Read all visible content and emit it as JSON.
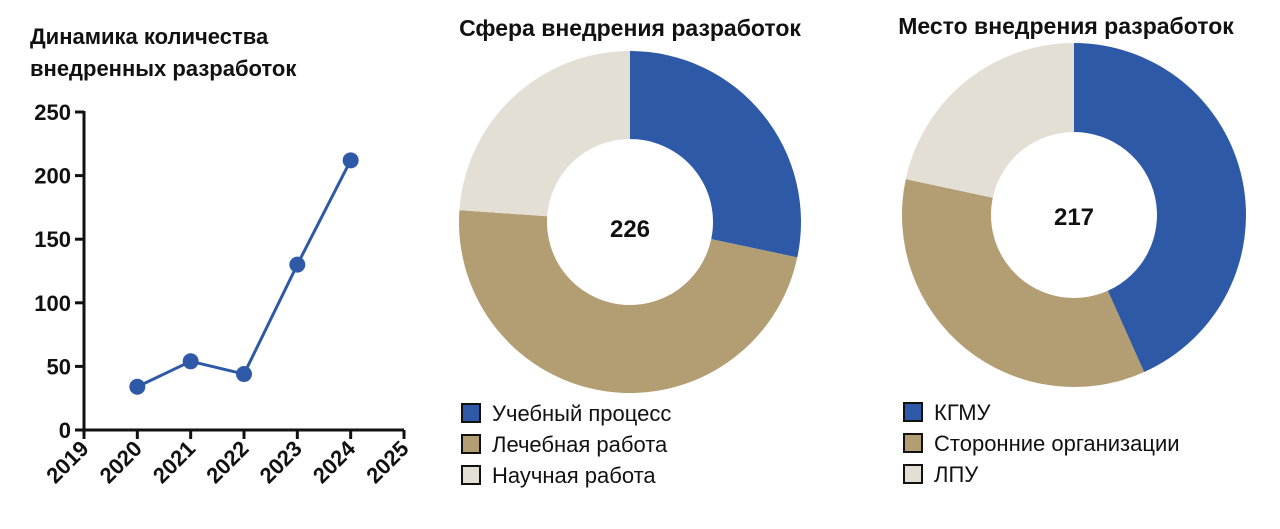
{
  "chart_data": [
    {
      "type": "line",
      "title_lines": [
        "Динамика количества",
        "внедренных разработок"
      ],
      "x": [
        2020,
        2021,
        2022,
        2023,
        2024
      ],
      "y": [
        34,
        54,
        44,
        130,
        212
      ],
      "x_ticks": [
        "2019",
        "2020",
        "2021",
        "2022",
        "2023",
        "2024",
        "2025"
      ],
      "y_ticks": [
        "0",
        "50",
        "100",
        "150",
        "200",
        "250"
      ],
      "xlim": [
        2019,
        2025
      ],
      "ylim": [
        0,
        250
      ],
      "grid": false,
      "color": "#2e59a7"
    },
    {
      "type": "pie",
      "donut": true,
      "title": "Сфера внедрения разработок",
      "total_label": "226",
      "labels": [
        "Учебный процесс",
        "Лечебная работа",
        "Научная работа"
      ],
      "values": [
        64,
        108,
        54
      ],
      "colors": [
        "#2e59a7",
        "#b39d72",
        "#e3dfd4"
      ],
      "legend_position": "bottom-left"
    },
    {
      "type": "pie",
      "donut": true,
      "title": "Место внедрения разработок",
      "total_label": "217",
      "labels": [
        "КГМУ",
        "Сторонние организации",
        "ЛПУ"
      ],
      "values": [
        94,
        76,
        47
      ],
      "colors": [
        "#2e59a7",
        "#b39d72",
        "#e3dfd4"
      ],
      "legend_position": "bottom-left"
    }
  ]
}
